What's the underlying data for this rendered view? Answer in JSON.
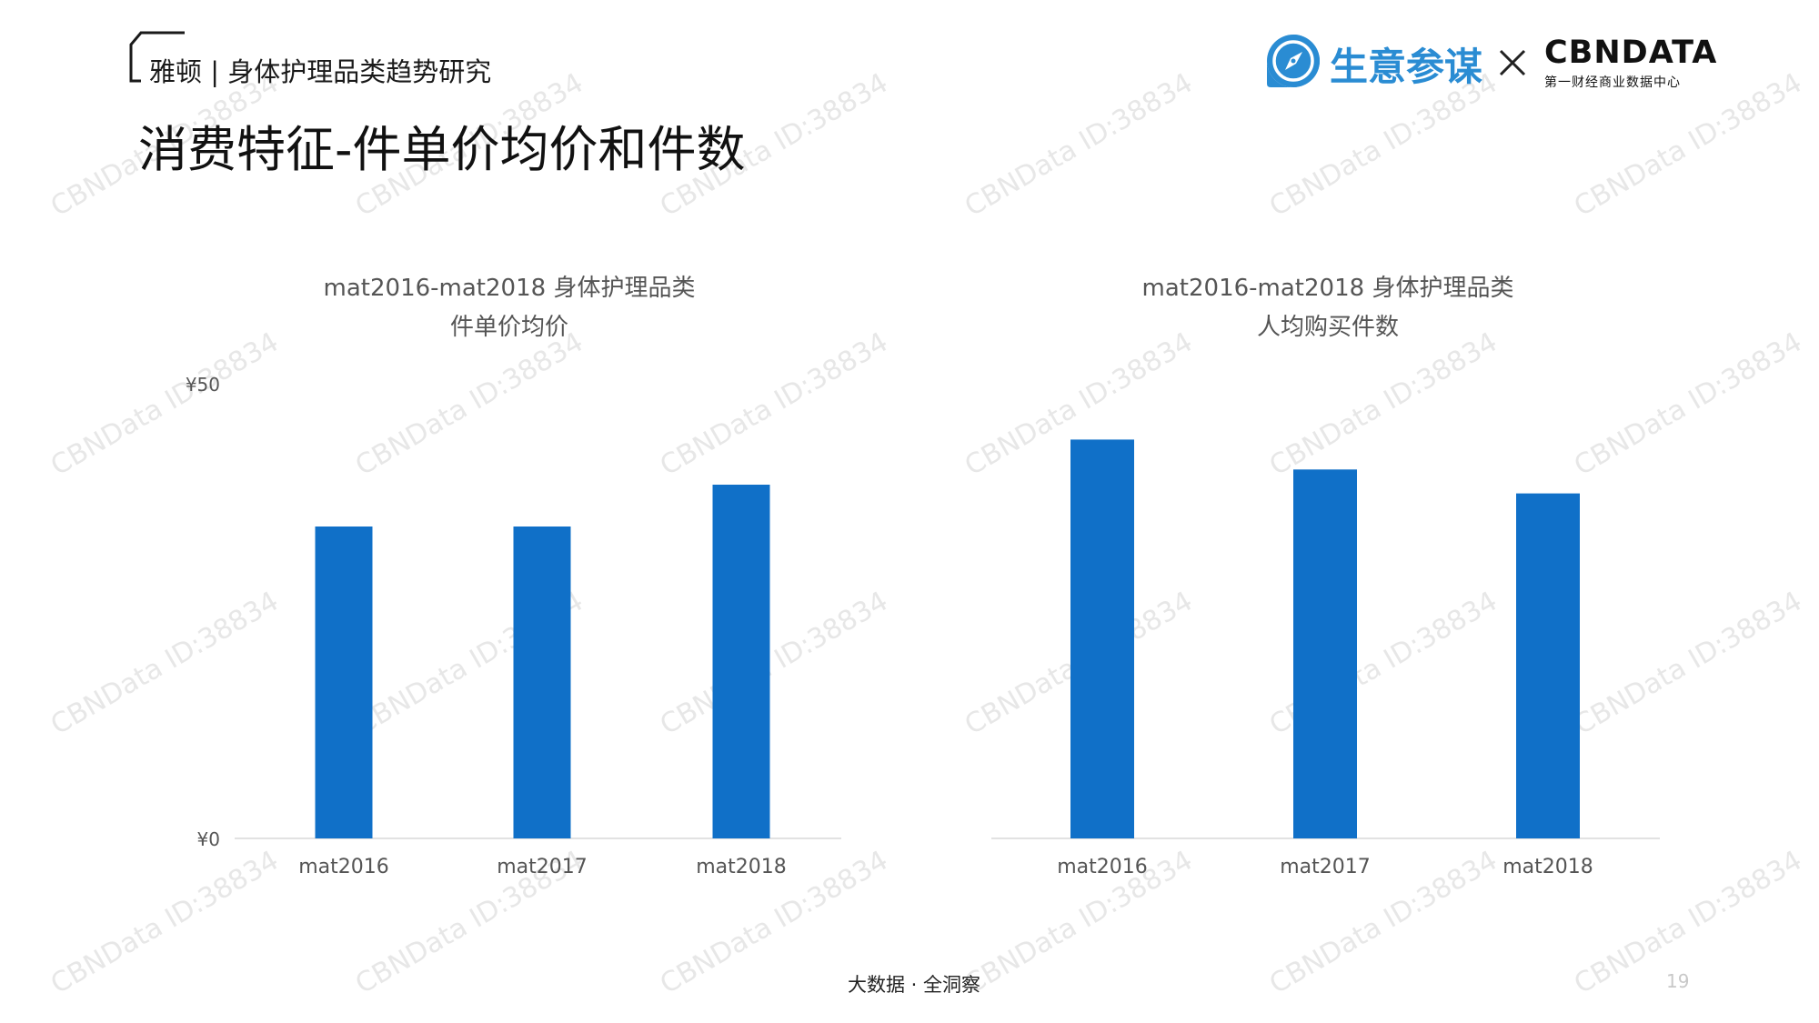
{
  "header": {
    "subtitle": "雅顿 | 身体护理品类趋势研究",
    "title": "消费特征-件单价均价和件数"
  },
  "logos": {
    "shengyi_text": "生意参谋",
    "times_symbol": "×",
    "cbndata_word": "CBNDATA",
    "cbndata_sub": "第一财经商业数据中心",
    "compass_icon": "compass-icon",
    "brand_color": "#2a8cd3"
  },
  "watermark_text": "CBNData ID:38834",
  "footer": {
    "tagline": "大数据 · 全洞察",
    "page_number": "19"
  },
  "colors": {
    "bar": "#1070c8",
    "axis": "#d9d9d9",
    "label": "#555555"
  },
  "chart_data": [
    {
      "type": "bar",
      "title_line1": "mat2016-mat2018 身体护理品类",
      "title_line2": "件单价均价",
      "categories": [
        "mat2016",
        "mat2017",
        "mat2018"
      ],
      "values": [
        34.3,
        34.3,
        38.9
      ],
      "ylim": [
        0,
        50
      ],
      "yticks": [
        "¥0",
        "¥50"
      ],
      "xlabel": "",
      "ylabel": "",
      "grid": false,
      "legend": "none"
    },
    {
      "type": "bar",
      "title_line1": "mat2016-mat2018 身体护理品类",
      "title_line2": "人均购买件数",
      "categories": [
        "mat2016",
        "mat2017",
        "mat2018"
      ],
      "values": [
        1.0,
        0.925,
        0.865
      ],
      "ylim": [
        0,
        1.14
      ],
      "yticks": [],
      "xlabel": "",
      "ylabel": "",
      "grid": false,
      "legend": "none"
    }
  ]
}
